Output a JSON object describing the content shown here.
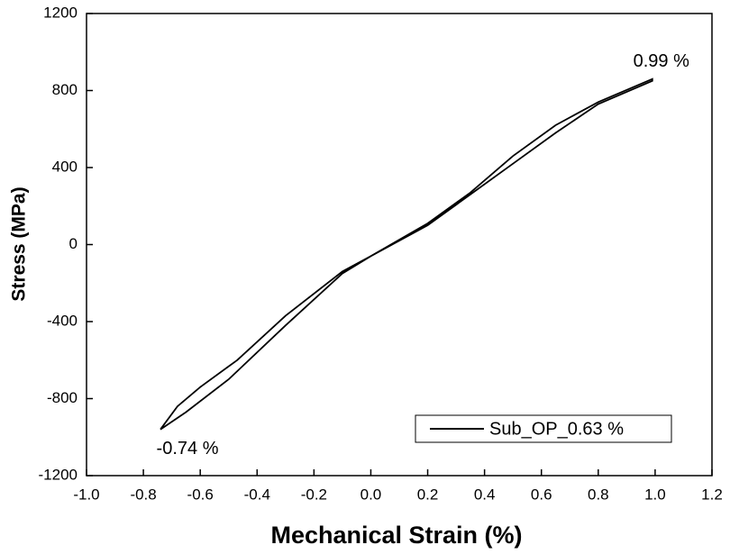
{
  "chart_data": {
    "type": "line",
    "xlabel": "Mechanical Strain (%)",
    "ylabel": "Stress (MPa)",
    "x": [
      -0.74,
      -0.68,
      -0.6,
      -0.47,
      -0.3,
      -0.1,
      0.0,
      0.2,
      0.35,
      0.5,
      0.65,
      0.8,
      0.99,
      0.99,
      0.8,
      0.65,
      0.5,
      0.35,
      0.2,
      0.0,
      -0.1,
      -0.3,
      -0.5,
      -0.65,
      -0.74
    ],
    "series": [
      {
        "name": "Sub_OP_0.63 %",
        "color": "#000000",
        "values": [
          -960,
          -840,
          -740,
          -600,
          -370,
          -140,
          -60,
          110,
          270,
          460,
          620,
          740,
          860,
          850,
          730,
          580,
          420,
          260,
          100,
          -60,
          -150,
          -420,
          -700,
          -870,
          -960
        ]
      }
    ],
    "annotations": [
      "0.99 %",
      "-0.74 %"
    ],
    "xlim": [
      -1.0,
      1.2
    ],
    "ylim": [
      -1200,
      1200
    ],
    "xticks": [
      {
        "value": -1.0,
        "label": "-1.0"
      },
      -0.8,
      -0.6,
      -0.4,
      -0.2,
      {
        "value": 0,
        "label": "0.0"
      },
      0.2,
      0.4,
      0.6,
      0.8,
      {
        "value": 1.0,
        "label": "1.0"
      },
      1.2
    ],
    "yticks": [
      -1200,
      -800,
      -400,
      0,
      400,
      800,
      1200
    ],
    "legend": "lower right",
    "grid": false
  }
}
